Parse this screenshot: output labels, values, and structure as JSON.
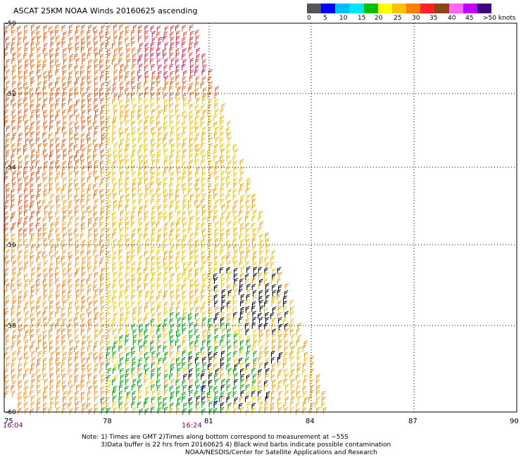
{
  "header": {
    "title": "ASCAT 25KM NOAA Winds 20160625 ascending"
  },
  "legend": {
    "colors": [
      "#555555",
      "#0000ff",
      "#00bfff",
      "#00e5ff",
      "#00c000",
      "#ffff00",
      "#ffc000",
      "#ff7f00",
      "#ff2020",
      "#8b4513",
      "#ff66ff",
      "#c000ff",
      "#400080"
    ],
    "labels": [
      "0",
      "5",
      "10",
      "15",
      "20",
      "25",
      "30",
      "35",
      "40",
      "45",
      ">50 knots"
    ]
  },
  "map": {
    "lon_labels": [
      "75",
      "78",
      "81",
      "84",
      "87",
      "90"
    ],
    "lat_labels": [
      "-50",
      "-52",
      "-54",
      "-56",
      "-58",
      "-60"
    ],
    "lon_range": [
      75,
      90
    ],
    "lat_range": [
      -60,
      -50
    ],
    "time_labels": [
      "16:04",
      "16:24"
    ],
    "time_color": "#7f007f"
  },
  "notes": {
    "line1": "Note: 1) Times are GMT 2)Times along bottom correspond to measurement at ~55S",
    "line2": "3)Data buffer is 22 hrs from 20160625 4) Black wind barbs indicate possible contamination",
    "line3": "NOAA/NESDIS/Center for Satellite Applications and Research"
  }
}
